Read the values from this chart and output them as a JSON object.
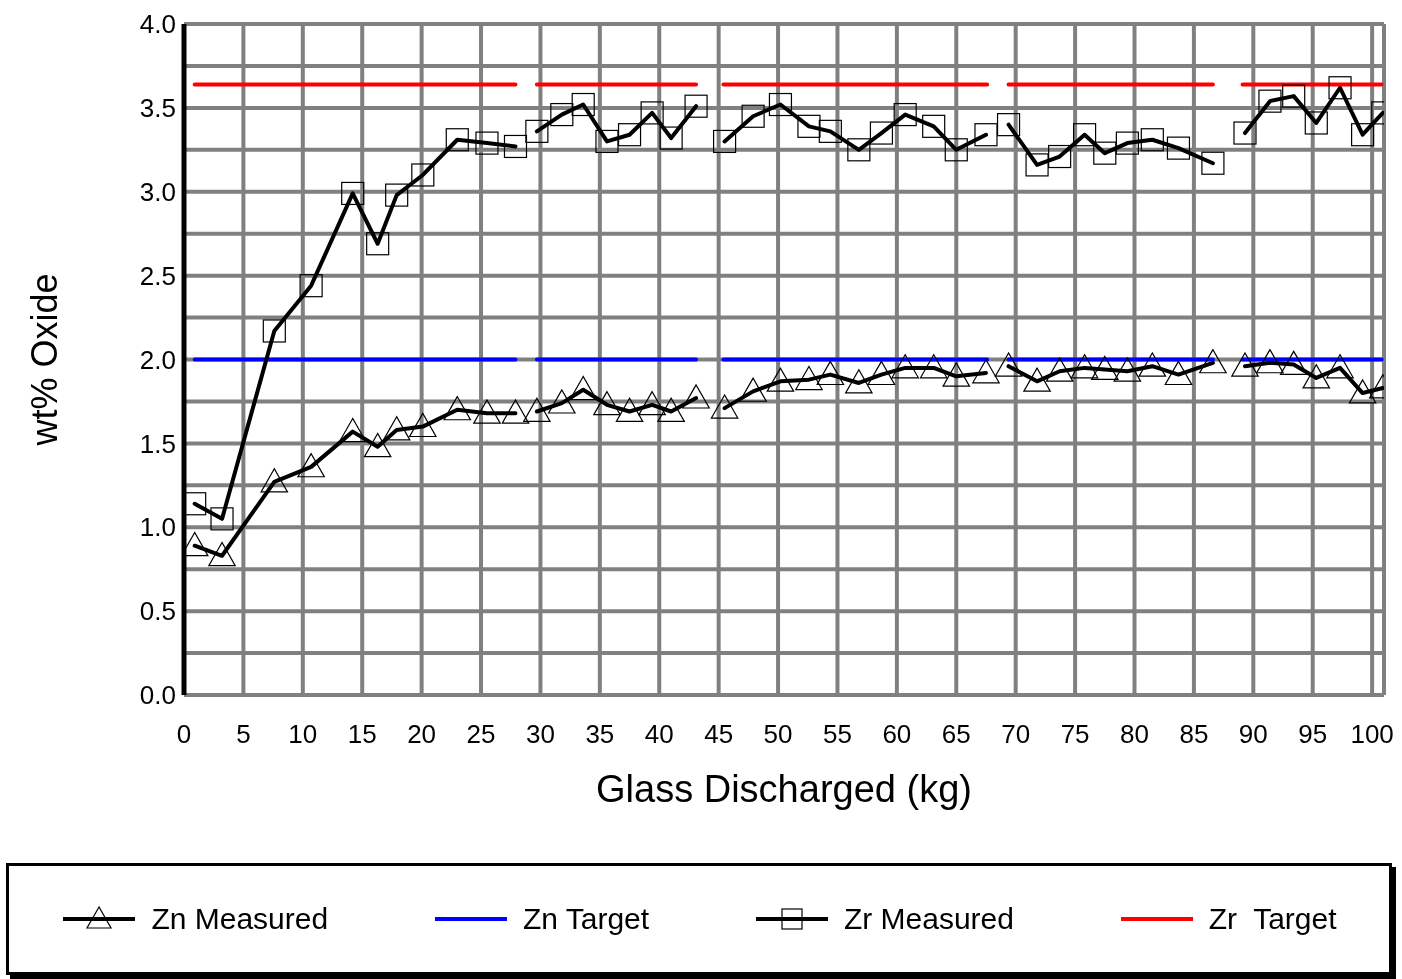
{
  "chart_data": {
    "type": "line",
    "xlabel": "Glass Discharged (kg)",
    "ylabel": "wt% Oxide",
    "xlim": [
      0,
      101
    ],
    "xticks": [
      0,
      5,
      10,
      15,
      20,
      25,
      30,
      35,
      40,
      45,
      50,
      55,
      60,
      65,
      70,
      75,
      80,
      85,
      90,
      95,
      100
    ],
    "ylim": [
      0,
      4
    ],
    "yticks": [
      {
        "value": 0,
        "label": "0.0"
      },
      {
        "value": 0.25,
        "label": null
      },
      {
        "value": 0.5,
        "label": "0.5"
      },
      {
        "value": 0.75,
        "label": null
      },
      {
        "value": 1,
        "label": "1.0"
      },
      {
        "value": 1.25,
        "label": null
      },
      {
        "value": 1.5,
        "label": "1.5"
      },
      {
        "value": 1.75,
        "label": null
      },
      {
        "value": 2,
        "label": "2.0"
      },
      {
        "value": 2.25,
        "label": null
      },
      {
        "value": 2.5,
        "label": "2.5"
      },
      {
        "value": 2.75,
        "label": null
      },
      {
        "value": 3,
        "label": "3.0"
      },
      {
        "value": 3.25,
        "label": null
      },
      {
        "value": 3.5,
        "label": "3.5"
      },
      {
        "value": 3.75,
        "label": null
      },
      {
        "value": 4,
        "label": "4.0"
      }
    ],
    "grid": true,
    "legend": "bottom",
    "line_style": "solid",
    "series": [
      {
        "name": "Zn Measured",
        "color": "#000000",
        "marker": "triangle",
        "x": [
          0.9,
          3.2,
          7.6,
          10.7,
          14.2,
          16.3,
          17.9,
          20.1,
          23.0,
          25.5,
          27.9,
          28.8,
          29.7,
          31.8,
          33.6,
          35.6,
          37.5,
          39.4,
          41.0,
          43.1,
          44.3,
          45.5,
          47.9,
          50.2,
          52.6,
          54.4,
          56.8,
          58.7,
          60.7,
          63.1,
          65.0,
          67.5,
          68.5,
          69.4,
          71.8,
          73.7,
          75.8,
          77.5,
          79.4,
          81.5,
          83.7,
          86.6,
          88.0,
          89.3,
          91.4,
          93.4,
          95.3,
          97.3,
          99.2,
          100.9
        ],
        "values": [
          0.89,
          0.83,
          1.27,
          1.36,
          1.57,
          1.48,
          1.58,
          1.6,
          1.7,
          1.68,
          1.68,
          null,
          1.69,
          1.74,
          1.82,
          1.73,
          1.69,
          1.73,
          1.69,
          1.77,
          null,
          1.71,
          1.81,
          1.87,
          1.88,
          1.91,
          1.86,
          1.91,
          1.95,
          1.95,
          1.9,
          1.92,
          null,
          1.96,
          1.87,
          1.93,
          1.95,
          1.94,
          1.93,
          1.96,
          1.91,
          1.98,
          null,
          1.96,
          1.98,
          1.97,
          1.89,
          1.95,
          1.8,
          1.83
        ]
      },
      {
        "name": "Zn Target",
        "color": "#0000ff",
        "marker": "none",
        "x": [
          0.9,
          27.9,
          28.8,
          29.7,
          43.1,
          44.3,
          45.4,
          67.6,
          68.5,
          69.4,
          86.6,
          88.0,
          89.1,
          100.8
        ],
        "values": [
          2.0,
          2.0,
          null,
          2.0,
          2.0,
          null,
          2.0,
          2.0,
          null,
          2.0,
          2.0,
          null,
          2.0,
          2.0
        ]
      },
      {
        "name": "Zr Measured",
        "color": "#000000",
        "marker": "square",
        "x": [
          0.9,
          3.2,
          7.6,
          10.7,
          14.2,
          16.3,
          17.9,
          20.1,
          23.0,
          25.5,
          27.9,
          28.8,
          29.7,
          31.8,
          33.6,
          35.6,
          37.5,
          39.4,
          41.0,
          43.1,
          44.3,
          45.5,
          47.9,
          50.2,
          52.6,
          54.4,
          56.8,
          58.7,
          60.7,
          63.1,
          65.0,
          67.5,
          68.5,
          69.4,
          71.8,
          73.7,
          75.8,
          77.5,
          79.4,
          81.5,
          83.7,
          86.6,
          88.0,
          89.3,
          91.4,
          93.4,
          95.3,
          97.3,
          99.2,
          100.9
        ],
        "values": [
          1.14,
          1.05,
          2.17,
          2.44,
          2.99,
          2.69,
          2.98,
          3.1,
          3.31,
          3.29,
          3.27,
          null,
          3.36,
          3.46,
          3.52,
          3.3,
          3.34,
          3.47,
          3.32,
          3.51,
          null,
          3.3,
          3.45,
          3.52,
          3.39,
          3.36,
          3.25,
          3.35,
          3.46,
          3.39,
          3.25,
          3.34,
          null,
          3.4,
          3.16,
          3.21,
          3.34,
          3.23,
          3.29,
          3.31,
          3.26,
          3.17,
          null,
          3.35,
          3.54,
          3.57,
          3.41,
          3.62,
          3.34,
          3.47
        ]
      },
      {
        "name": "Zr  Target",
        "color": "#ff0000",
        "marker": "none",
        "x": [
          0.9,
          27.9,
          28.8,
          29.7,
          43.1,
          44.3,
          45.4,
          67.6,
          68.5,
          69.4,
          86.6,
          88.0,
          89.1,
          100.8
        ],
        "values": [
          3.64,
          3.64,
          null,
          3.64,
          3.64,
          null,
          3.64,
          3.64,
          null,
          3.64,
          3.64,
          null,
          3.64,
          3.64
        ]
      }
    ]
  }
}
